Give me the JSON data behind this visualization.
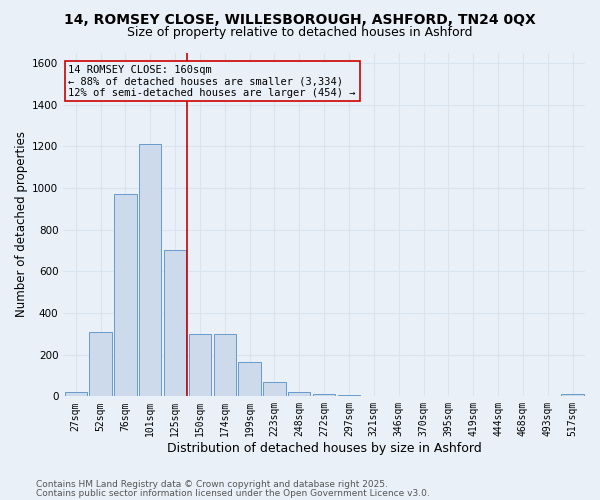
{
  "title_line1": "14, ROMSEY CLOSE, WILLESBOROUGH, ASHFORD, TN24 0QX",
  "title_line2": "Size of property relative to detached houses in Ashford",
  "xlabel": "Distribution of detached houses by size in Ashford",
  "ylabel": "Number of detached properties",
  "categories": [
    "27sqm",
    "52sqm",
    "76sqm",
    "101sqm",
    "125sqm",
    "150sqm",
    "174sqm",
    "199sqm",
    "223sqm",
    "248sqm",
    "272sqm",
    "297sqm",
    "321sqm",
    "346sqm",
    "370sqm",
    "395sqm",
    "419sqm",
    "444sqm",
    "468sqm",
    "493sqm",
    "517sqm"
  ],
  "values": [
    20,
    310,
    970,
    1210,
    700,
    300,
    300,
    165,
    70,
    20,
    10,
    4,
    2,
    2,
    2,
    1,
    1,
    1,
    1,
    0,
    10
  ],
  "bar_color": "#ccdaec",
  "bar_edge_color": "#6699cc",
  "vline_x_index": 4.5,
  "vline_color": "#cc0000",
  "annotation_text": "14 ROMSEY CLOSE: 160sqm\n← 88% of detached houses are smaller (3,334)\n12% of semi-detached houses are larger (454) →",
  "annotation_box_color": "#cc0000",
  "background_color": "#eaf0f8",
  "grid_color": "#d8e4f0",
  "ylim": [
    0,
    1650
  ],
  "yticks": [
    0,
    200,
    400,
    600,
    800,
    1000,
    1200,
    1400,
    1600
  ],
  "footnote_line1": "Contains HM Land Registry data © Crown copyright and database right 2025.",
  "footnote_line2": "Contains public sector information licensed under the Open Government Licence v3.0.",
  "title_fontsize": 10,
  "subtitle_fontsize": 9,
  "axis_label_fontsize": 8.5,
  "tick_fontsize": 7,
  "annotation_fontsize": 7.5,
  "footnote_fontsize": 6.5
}
